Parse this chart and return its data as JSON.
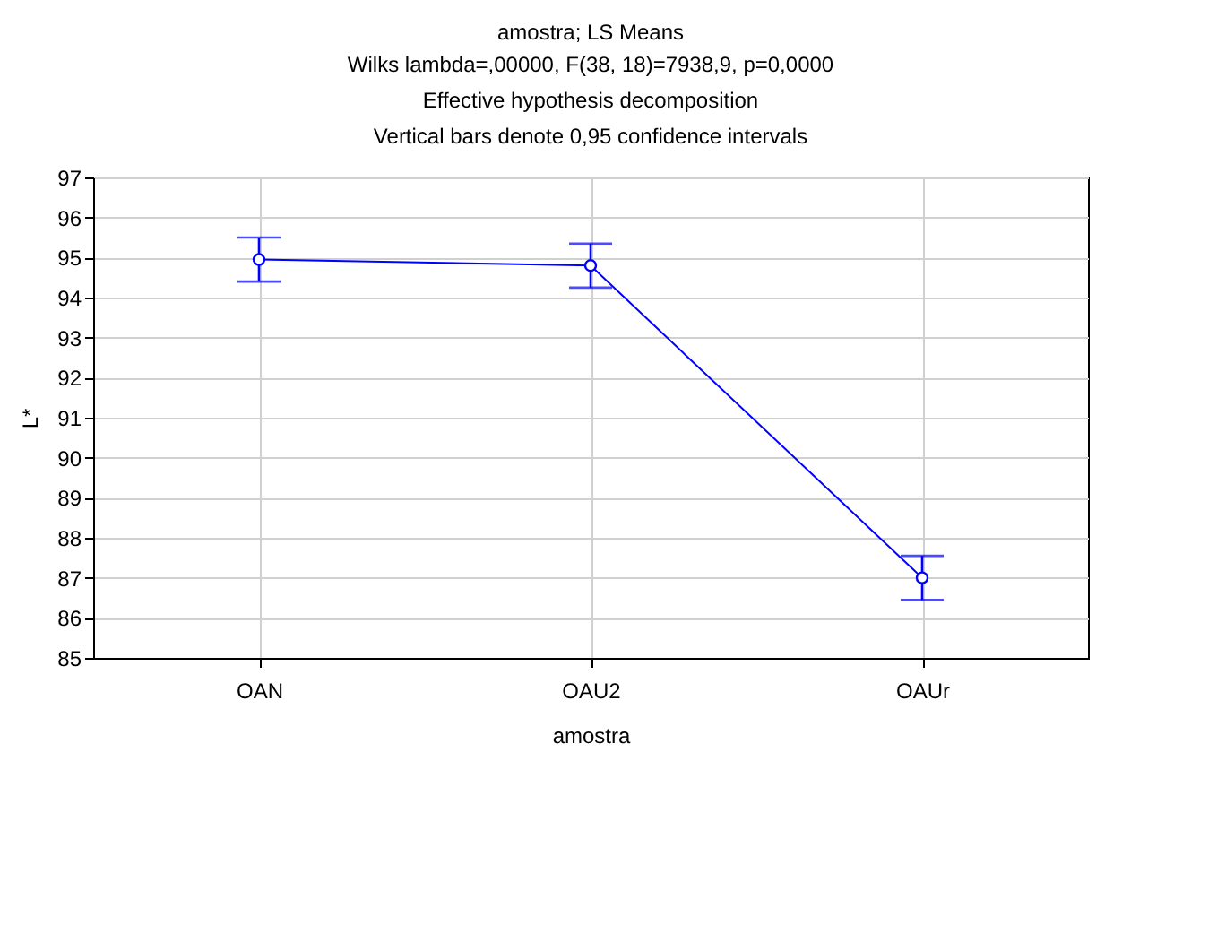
{
  "chart_data": {
    "type": "line",
    "title": "amostra; LS Means",
    "subtitle": "Wilks lambda=,00000, F(38, 18)=7938,9, p=0,0000\nEffective hypothesis decomposition\nVertical bars denote 0,95 confidence intervals",
    "xlabel": "amostra",
    "ylabel": "L*",
    "categories": [
      "OAN",
      "OAU2",
      "OAUr"
    ],
    "series": [
      {
        "color": "#0000ff",
        "values": [
          94.95,
          94.8,
          87.0
        ],
        "errors": [
          0.55,
          0.55,
          0.55
        ]
      }
    ],
    "ylim": [
      85,
      97
    ],
    "yticks": [
      85,
      86,
      87,
      88,
      89,
      90,
      91,
      92,
      93,
      94,
      95,
      96,
      97
    ],
    "grid": true,
    "marker": "circle",
    "line_style": "solid"
  }
}
